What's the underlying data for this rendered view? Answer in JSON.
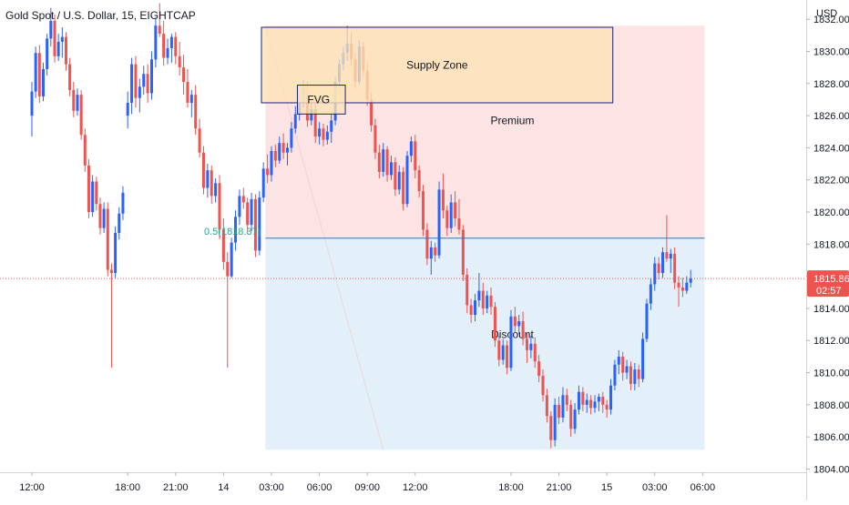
{
  "header": {
    "title": "Gold Spot / U.S. Dollar, 15, EIGHTCAP"
  },
  "chart_data": {
    "type": "candlestick",
    "symbol": "Gold Spot / U.S. Dollar",
    "interval": "15",
    "source": "EIGHTCAP",
    "currency_label": "USD",
    "ylim": [
      1803.8,
      1833.2
    ],
    "y_ticks": [
      "1804.00",
      "1806.00",
      "1808.00",
      "1810.00",
      "1812.00",
      "1814.00",
      "1816.00",
      "1818.00",
      "1820.00",
      "1822.00",
      "1824.00",
      "1826.00",
      "1828.00",
      "1830.00",
      "1832.00"
    ],
    "x_ticks": [
      {
        "label": "12:00",
        "t": 0
      },
      {
        "label": "18:00",
        "t": 24
      },
      {
        "label": "21:00",
        "t": 36
      },
      {
        "label": "14",
        "t": 48
      },
      {
        "label": "03:00",
        "t": 60
      },
      {
        "label": "06:00",
        "t": 72
      },
      {
        "label": "09:00",
        "t": 84
      },
      {
        "label": "12:00",
        "t": 96
      },
      {
        "label": "18:00",
        "t": 120
      },
      {
        "label": "21:00",
        "t": 132
      },
      {
        "label": "15",
        "t": 144
      },
      {
        "label": "03:00",
        "t": 156
      },
      {
        "label": "06:00",
        "t": 168
      }
    ],
    "last_price": {
      "value": 1815.86,
      "label": "1815.86",
      "countdown": "02:57",
      "color": "#ef5350"
    },
    "colors": {
      "up": "#2962ff",
      "down": "#ef5350"
    },
    "candles": [
      [
        1826,
        1827.5,
        1825.2,
        1826.8
      ],
      [
        1826.8,
        1829.6,
        1826.1,
        1829.2
      ],
      [
        1829.2,
        1829.7,
        1826.5,
        1827.1
      ],
      [
        1827.1,
        1828.3,
        1826.2,
        1827.8
      ],
      [
        1827.8,
        1829.1,
        1827.3,
        1828.6
      ],
      [
        1828.6,
        1829.2,
        1826.8,
        1827.4
      ],
      [
        1827.4,
        1830,
        1827,
        1829.5
      ],
      [
        1829.5,
        1832.1,
        1829,
        1831.6
      ],
      [
        1831.6,
        1833,
        1830.9,
        1831.1
      ],
      [
        1831.1,
        1831.9,
        1829.1,
        1829.6
      ],
      [
        1829.6,
        1830.8,
        1829.2,
        1830.2
      ],
      [
        1830.2,
        1831.1,
        1829.3,
        1830.9
      ],
      [
        1830.9,
        1831.2,
        1829.2,
        1829.7
      ],
      [
        1829.7,
        1830.6,
        1828.5,
        1829
      ],
      [
        1829,
        1829.8,
        1827.3,
        1828.1
      ],
      [
        1828.1,
        1828.9,
        1826.5,
        1826.8
      ],
      [
        1826.8,
        1827.6,
        1825.9,
        1827.3
      ],
      [
        1827.3,
        1827.9,
        1824.8,
        1825.2
      ],
      [
        1825.2,
        1825.8,
        1823.4,
        1823.7
      ],
      [
        1823.7,
        1824.1,
        1821.1,
        1821.5
      ],
      [
        1821.5,
        1823,
        1820.9,
        1822.6
      ],
      [
        1822.6,
        1822.9,
        1820.5,
        1821
      ],
      [
        1821,
        1822.1,
        1820.6,
        1821.8
      ],
      [
        1821.8,
        1822.3,
        1818.3,
        1818.9
      ],
      [
        1818.9,
        1819.6,
        1816.4,
        1816.9
      ],
      [
        1816.9,
        1817.5,
        1810.3,
        1816
      ],
      [
        1816,
        1818.4,
        1815.9,
        1818.1
      ],
      [
        1818.1,
        1820.1,
        1817.6,
        1819.7
      ],
      [
        1819.7,
        1821.4,
        1819.2,
        1821
      ],
      [
        1821,
        1821.5,
        1820.2,
        1820.6
      ],
      [
        1820.6,
        1820.9,
        1818.7,
        1819.2
      ],
      [
        1819.2,
        1821.2,
        1818.8,
        1820.8
      ],
      [
        1820.8,
        1821.1,
        1817.2,
        1817.6
      ],
      [
        1817.6,
        1821.3,
        1817.3,
        1820.9
      ],
      [
        1820.9,
        1823.1,
        1820.6,
        1822.7
      ],
      [
        1822.7,
        1823.6,
        1821.8,
        1822.3
      ],
      [
        1822.3,
        1824.1,
        1821.9,
        1823.8
      ],
      [
        1823.8,
        1824.2,
        1822.8,
        1823.2
      ],
      [
        1823.2,
        1824.7,
        1823,
        1824.3
      ],
      [
        1824.3,
        1824.9,
        1823.3,
        1823.7
      ],
      [
        1823.7,
        1824.3,
        1822.9,
        1824
      ],
      [
        1824,
        1825.6,
        1823.7,
        1825.2
      ],
      [
        1825.2,
        1826.6,
        1824.9,
        1826.1
      ],
      [
        1826.1,
        1827.3,
        1825.7,
        1826.9
      ],
      [
        1826.9,
        1828.2,
        1826.5,
        1827.8
      ],
      [
        1827.8,
        1828.1,
        1825.3,
        1825.7
      ],
      [
        1825.7,
        1826.8,
        1825.4,
        1826.4
      ],
      [
        1826.4,
        1826.9,
        1824.3,
        1824.7
      ],
      [
        1824.7,
        1825.6,
        1824.2,
        1825.2
      ],
      [
        1825.2,
        1825.5,
        1824.1,
        1824.5
      ],
      [
        1824.5,
        1825.4,
        1824.2,
        1825
      ],
      [
        1825,
        1826.1,
        1824.3,
        1825.7
      ],
      [
        1825.7,
        1828.4,
        1825.4,
        1828.1
      ],
      [
        1828.1,
        1829.5,
        1827.6,
        1829.2
      ],
      [
        1829.2,
        1830.3,
        1828.8,
        1829.9
      ],
      [
        1829.9,
        1831.6,
        1829.4,
        1830.5
      ],
      [
        1830.5,
        1831.2,
        1829.1,
        1829.5
      ],
      [
        1829.5,
        1829.9,
        1827.7,
        1828.1
      ],
      [
        1828.1,
        1830.7,
        1827.9,
        1830.3
      ],
      [
        1830.3,
        1830.6,
        1828.4,
        1828.8
      ],
      [
        1828.8,
        1829.3,
        1826.6,
        1827
      ],
      [
        1827,
        1827.4,
        1825,
        1825.4
      ],
      [
        1825.4,
        1825.8,
        1823.3,
        1823.7
      ],
      [
        1823.7,
        1824.2,
        1822.1,
        1822.5
      ],
      [
        1822.5,
        1824.3,
        1822.2,
        1823.9
      ],
      [
        1823.9,
        1824.1,
        1821.9,
        1822.3
      ],
      [
        1822.3,
        1823.5,
        1822,
        1823.1
      ],
      [
        1823.1,
        1823.4,
        1821,
        1821.4
      ],
      [
        1821.4,
        1822.9,
        1821.1,
        1822.5
      ],
      [
        1822.5,
        1822.8,
        1820.1,
        1820.5
      ],
      [
        1820.5,
        1823.8,
        1820.3,
        1823.5
      ],
      [
        1823.5,
        1824.7,
        1823.1,
        1824.4
      ],
      [
        1824.4,
        1824.8,
        1822.1,
        1822.6
      ],
      [
        1822.6,
        1822.9,
        1820.9,
        1821.3
      ],
      [
        1821.3,
        1821.7,
        1818.5,
        1818.9
      ],
      [
        1818.9,
        1819.3,
        1816.7,
        1817.1
      ],
      [
        1817.1,
        1818.2,
        1816.1,
        1817.8
      ],
      [
        1817.8,
        1818.1,
        1816.9,
        1817.3
      ],
      [
        1817.3,
        1821.9,
        1817.1,
        1821.4
      ],
      [
        1821.4,
        1822.4,
        1819.6,
        1820.1
      ],
      [
        1820.1,
        1820.4,
        1818.5,
        1819
      ],
      [
        1819,
        1821.1,
        1818.7,
        1820.6
      ],
      [
        1820.6,
        1821.3,
        1819.1,
        1819.6
      ],
      [
        1819.6,
        1820.8,
        1818.6,
        1818.9
      ],
      [
        1818.9,
        1819.2,
        1815.7,
        1816.1
      ],
      [
        1816.1,
        1816.5,
        1813.7,
        1814.2
      ],
      [
        1814.2,
        1814.6,
        1813.1,
        1813.6
      ],
      [
        1813.6,
        1814.9,
        1813.2,
        1814.5
      ],
      [
        1814.5,
        1816.2,
        1814.1,
        1815.1
      ],
      [
        1815.1,
        1815.6,
        1813.6,
        1814
      ],
      [
        1814,
        1815.1,
        1813.7,
        1814.8
      ],
      [
        1814.8,
        1815.3,
        1813.6,
        1814.1
      ],
      [
        1814.1,
        1814.4,
        1811.6,
        1812
      ],
      [
        1812,
        1812.3,
        1810.4,
        1810.8
      ],
      [
        1810.8,
        1812.1,
        1810.5,
        1811.7
      ],
      [
        1811.7,
        1812,
        1809.9,
        1810.3
      ],
      [
        1810.3,
        1813.9,
        1810.1,
        1813.5
      ],
      [
        1813.5,
        1814.1,
        1812.5,
        1812.9
      ],
      [
        1812.9,
        1813.6,
        1812.4,
        1813.2
      ],
      [
        1813.2,
        1813.8,
        1811.7,
        1812.1
      ],
      [
        1812.1,
        1812.5,
        1810.6,
        1811.4
      ],
      [
        1811.4,
        1812.3,
        1810.9,
        1811.8
      ],
      [
        1811.8,
        1812.2,
        1810.3,
        1810.7
      ],
      [
        1810.7,
        1811.1,
        1809.4,
        1809.8
      ],
      [
        1809.8,
        1810.2,
        1808.2,
        1808.6
      ],
      [
        1808.6,
        1809,
        1806.9,
        1807.3
      ],
      [
        1807.3,
        1807.6,
        1805.3,
        1805.8
      ],
      [
        1805.8,
        1808.4,
        1805.4,
        1808
      ],
      [
        1808,
        1808.5,
        1806.8,
        1807.2
      ],
      [
        1807.2,
        1809.1,
        1806.9,
        1808.6
      ],
      [
        1808.6,
        1809,
        1807.6,
        1808
      ],
      [
        1808,
        1808.3,
        1806,
        1806.5
      ],
      [
        1806.5,
        1808.1,
        1806.2,
        1807.7
      ],
      [
        1807.7,
        1809.2,
        1807.4,
        1808.8
      ],
      [
        1808.8,
        1809.1,
        1807.6,
        1808
      ],
      [
        1808,
        1808.7,
        1807.5,
        1808.3
      ],
      [
        1808.3,
        1808.6,
        1807.4,
        1807.8
      ],
      [
        1807.8,
        1808.6,
        1807.5,
        1808.2
      ],
      [
        1808.2,
        1808.7,
        1807.6,
        1808.5
      ],
      [
        1808.5,
        1808.8,
        1807.5,
        1808
      ],
      [
        1808,
        1808.3,
        1807.2,
        1807.7
      ],
      [
        1807.7,
        1809.6,
        1807.4,
        1809.2
      ],
      [
        1809.2,
        1810.8,
        1808.9,
        1810.5
      ],
      [
        1810.5,
        1811.4,
        1809.9,
        1811
      ],
      [
        1811,
        1811.3,
        1809.5,
        1810
      ],
      [
        1810,
        1810.8,
        1809.6,
        1810.4
      ],
      [
        1810.4,
        1810.7,
        1808.9,
        1809.3
      ],
      [
        1809.3,
        1810.6,
        1808.9,
        1810.2
      ],
      [
        1810.2,
        1810.5,
        1809.1,
        1809.6
      ],
      [
        1809.6,
        1812.5,
        1809.4,
        1812.1
      ],
      [
        1812.1,
        1814.6,
        1811.9,
        1814.3
      ],
      [
        1814.3,
        1815.9,
        1813.9,
        1815.5
      ],
      [
        1815.5,
        1817.2,
        1815.1,
        1816.8
      ],
      [
        1816.8,
        1817.2,
        1815.8,
        1816.2
      ],
      [
        1816.2,
        1817.8,
        1815.9,
        1817.5
      ],
      [
        1817.5,
        1819.8,
        1816.9,
        1817.1
      ],
      [
        1817.1,
        1817.7,
        1816.2,
        1817.4
      ],
      [
        1817.4,
        1817.8,
        1815.2,
        1815.6
      ],
      [
        1815.6,
        1816,
        1814.1,
        1815.3
      ],
      [
        1815.3,
        1815.9,
        1814.7,
        1815.1
      ],
      [
        1815.1,
        1816,
        1814.9,
        1815.6
      ],
      [
        1815.6,
        1816.4,
        1815.3,
        1815.86
      ]
    ],
    "pre_candles": [
      [
        1826,
        1828.1,
        1824.7,
        1827.5
      ],
      [
        1827.5,
        1830.3,
        1827.1,
        1829.9
      ],
      [
        1829.9,
        1830.4,
        1826.8,
        1827.2
      ],
      [
        1827.2,
        1829.3,
        1826.9,
        1828.9
      ],
      [
        1828.9,
        1831.1,
        1828.5,
        1830.8
      ],
      [
        1830.8,
        1832.7,
        1830.3,
        1831.9
      ],
      [
        1831.9,
        1832.3,
        1829.3,
        1829.7
      ],
      [
        1829.7,
        1831.1,
        1829.4,
        1830.6
      ],
      [
        1830.6,
        1831.5,
        1829.6,
        1830.9
      ],
      [
        1830.9,
        1831.2,
        1828.8,
        1829.2
      ],
      [
        1829.2,
        1829.6,
        1827.2,
        1827.6
      ],
      [
        1827.6,
        1828.1,
        1825.9,
        1826.3
      ],
      [
        1826.3,
        1827.7,
        1826,
        1827.3
      ],
      [
        1827.3,
        1827.6,
        1824.5,
        1824.8
      ],
      [
        1824.8,
        1825.2,
        1822.5,
        1822.9
      ],
      [
        1822.9,
        1823.3,
        1819.6,
        1820
      ],
      [
        1820,
        1822.3,
        1819.7,
        1821.9
      ],
      [
        1821.9,
        1822.2,
        1820.1,
        1820.5
      ],
      [
        1820.5,
        1820.9,
        1818.6,
        1819
      ],
      [
        1819,
        1820.6,
        1818.7,
        1820.2
      ],
      [
        1820.2,
        1820.6,
        1816,
        1816.4
      ],
      [
        1816.4,
        1816.8,
        1810.3,
        1816.2
      ],
      [
        1816.2,
        1819.1,
        1815.9,
        1818.7
      ],
      [
        1818.7,
        1820.3,
        1818.3,
        1819.9
      ],
      [
        1819.9,
        1821.6,
        1819.5,
        1821.2
      ]
    ],
    "annotations": [
      {
        "type": "rect",
        "label": "Supply Zone",
        "y_top": 1831.5,
        "y_bottom": 1826.8,
        "t_start": 57.5,
        "t_end": 145.5,
        "fill": "#fde3b6",
        "border": "#1a237e"
      },
      {
        "type": "rect",
        "label": "FVG",
        "y_top": 1827.9,
        "y_bottom": 1826.1,
        "t_start": 66.5,
        "t_end": 78.5,
        "fill": "#fde3b6",
        "border": "#1a237e"
      },
      {
        "type": "zone",
        "label": "Premium",
        "y_top": 1831.6,
        "y_bottom": 1818.45,
        "t_start": 58.5,
        "t_end": 168.5,
        "fill": "#fde4e4"
      },
      {
        "type": "zone",
        "label": "Discount",
        "y_top": 1818.45,
        "y_bottom": 1805.2,
        "t_start": 58.5,
        "t_end": 168.5,
        "fill": "#e3f0fa"
      },
      {
        "type": "hline",
        "label": "0.5(1818.37)",
        "value": 1818.37,
        "color": "#26a69a"
      }
    ]
  }
}
